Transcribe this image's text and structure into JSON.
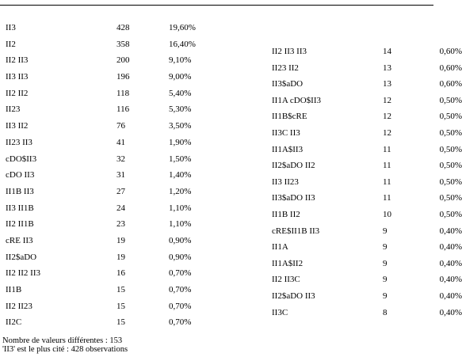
{
  "left_table": [
    {
      "label": "II3",
      "count": "428",
      "pct": "19,60%"
    },
    {
      "label": "II2",
      "count": "358",
      "pct": "16,40%"
    },
    {
      "label": "II2 II3",
      "count": "200",
      "pct": "9,10%"
    },
    {
      "label": "II3 II3",
      "count": "196",
      "pct": "9,00%"
    },
    {
      "label": "II2 II2",
      "count": "118",
      "pct": "5,40%"
    },
    {
      "label": "II23",
      "count": "116",
      "pct": "5,30%"
    },
    {
      "label": "II3 II2",
      "count": "76",
      "pct": "3,50%"
    },
    {
      "label": "II23 II3",
      "count": "41",
      "pct": "1,90%"
    },
    {
      "label": "cDO$II3",
      "count": "32",
      "pct": "1,50%"
    },
    {
      "label": "cDO II3",
      "count": "31",
      "pct": "1,40%"
    },
    {
      "label": "II1B II3",
      "count": "27",
      "pct": "1,20%"
    },
    {
      "label": "II3 II1B",
      "count": "24",
      "pct": "1,10%"
    },
    {
      "label": "II2 II1B",
      "count": "23",
      "pct": "1,10%"
    },
    {
      "label": "cRE II3",
      "count": "19",
      "pct": "0,90%"
    },
    {
      "label": "II2$aDO",
      "count": "19",
      "pct": "0,90%"
    },
    {
      "label": "II2 II2 II3",
      "count": "16",
      "pct": "0,70%"
    },
    {
      "label": "II1B",
      "count": "15",
      "pct": "0,70%"
    },
    {
      "label": "II2 II23",
      "count": "15",
      "pct": "0,70%"
    },
    {
      "label": "II2C",
      "count": "15",
      "pct": "0,70%"
    }
  ],
  "right_table": [
    {
      "label": "II2 II3 II3",
      "count": "14",
      "pct": "0,60%"
    },
    {
      "label": "II23 II2",
      "count": "13",
      "pct": "0,60%"
    },
    {
      "label": "II3$aDO",
      "count": "13",
      "pct": "0,60%"
    },
    {
      "label": "II1A cDO$II3",
      "count": "12",
      "pct": "0,50%"
    },
    {
      "label": "II1B$cRE",
      "count": "12",
      "pct": "0,50%"
    },
    {
      "label": "II3C II3",
      "count": "12",
      "pct": "0,50%"
    },
    {
      "label": "II1A$II3",
      "count": "11",
      "pct": "0,50%"
    },
    {
      "label": "II2$aDO II2",
      "count": "11",
      "pct": "0,50%"
    },
    {
      "label": "II3 II23",
      "count": "11",
      "pct": "0,50%"
    },
    {
      "label": "II3$aDO II3",
      "count": "11",
      "pct": "0,50%"
    },
    {
      "label": "II1B II2",
      "count": "10",
      "pct": "0,50%"
    },
    {
      "label": "cRE$II1B II3",
      "count": "9",
      "pct": "0,40%"
    },
    {
      "label": "II1A",
      "count": "9",
      "pct": "0,40%"
    },
    {
      "label": "II1A$II2",
      "count": "9",
      "pct": "0,40%"
    },
    {
      "label": "II2 II3C",
      "count": "9",
      "pct": "0,40%"
    },
    {
      "label": "II2$aDO II3",
      "count": "9",
      "pct": "0,40%"
    },
    {
      "label": "II3C",
      "count": "8",
      "pct": "0,40%"
    }
  ],
  "footer": {
    "line1": "Nombre de valeurs différentes : 153",
    "line2": "'II3' est le plus cité : 428 observations"
  }
}
